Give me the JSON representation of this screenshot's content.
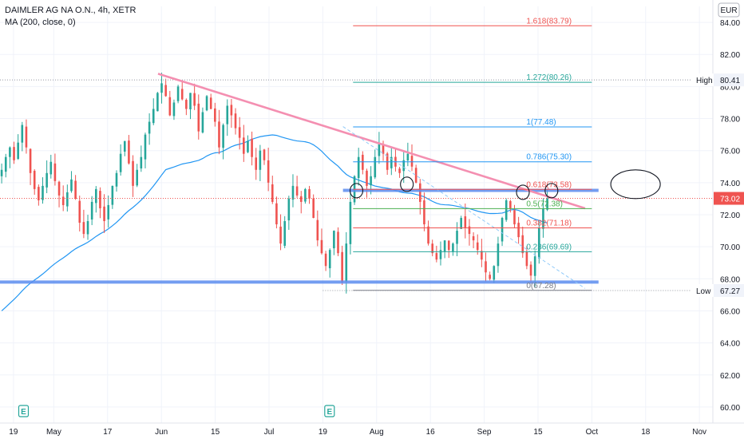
{
  "header": {
    "title": "DAIMLER AG NA O.N., 4h, XETR",
    "indicator": "MA (200, close, 0)",
    "currency": "EUR"
  },
  "colors": {
    "up": "#26a69a",
    "down": "#ef5350",
    "ma": "#2196f3",
    "trendline": "#f48fb1",
    "support": "#5b8def",
    "price_badge": "#ef5350"
  },
  "chart_data": {
    "type": "candlestick",
    "ylim": [
      59,
      85
    ],
    "y_ticks": [
      "60.00",
      "62.00",
      "64.00",
      "66.00",
      "68.00",
      "70.00",
      "72.00",
      "74.00",
      "76.00",
      "78.00",
      "80.00",
      "82.00",
      "84.00"
    ],
    "x_ticks": [
      {
        "label": "19",
        "pos": 0.0
      },
      {
        "label": "May",
        "pos": 12.0
      },
      {
        "label": "17",
        "pos": 28.0
      },
      {
        "label": "Jun",
        "pos": 44.0
      },
      {
        "label": "15",
        "pos": 60.0
      },
      {
        "label": "Jul",
        "pos": 76.0
      },
      {
        "label": "19",
        "pos": 92.0
      },
      {
        "label": "Aug",
        "pos": 108.0
      },
      {
        "label": "16",
        "pos": 124.0
      },
      {
        "label": "Sep",
        "pos": 140.0
      },
      {
        "label": "15",
        "pos": 156.0
      },
      {
        "label": "Oct",
        "pos": 172.0
      },
      {
        "label": "18",
        "pos": 188.0
      },
      {
        "label": "Nov",
        "pos": 204.0
      }
    ],
    "x_range": [
      -4,
      208
    ],
    "earnings_markers": [
      {
        "label": "E",
        "pos": 3.0
      },
      {
        "label": "E",
        "pos": 94.0
      }
    ],
    "closes": [
      74.8,
      75.6,
      76.2,
      75.4,
      76.5,
      77.6,
      76.2,
      74.6,
      73.6,
      72.9,
      73.8,
      74.6,
      75.3,
      74.1,
      73.2,
      72.6,
      73.4,
      74.2,
      73.0,
      71.5,
      70.8,
      71.6,
      72.8,
      73.6,
      72.4,
      71.6,
      72.6,
      73.8,
      74.6,
      75.8,
      76.6,
      75.2,
      73.8,
      74.8,
      75.6,
      77.0,
      77.8,
      78.6,
      79.6,
      80.2,
      79.4,
      78.2,
      79.0,
      80.0,
      79.2,
      78.6,
      79.6,
      78.8,
      77.2,
      78.4,
      79.4,
      78.6,
      77.8,
      76.2,
      77.6,
      78.8,
      78.2,
      77.4,
      76.8,
      75.8,
      76.6,
      75.6,
      74.8,
      76.0,
      75.4,
      74.0,
      72.8,
      71.4,
      70.2,
      71.6,
      73.0,
      73.8,
      73.2,
      72.8,
      73.6,
      73.0,
      71.8,
      70.4,
      69.6,
      68.8,
      69.8,
      71.0,
      69.6,
      67.8,
      70.2,
      72.8,
      74.4,
      75.6,
      74.8,
      73.8,
      74.4,
      75.6,
      76.4,
      75.8,
      74.8,
      75.6,
      75.0,
      74.6,
      75.4,
      75.8,
      75.0,
      74.0,
      72.8,
      71.4,
      70.2,
      69.6,
      69.2,
      69.8,
      70.4,
      69.8,
      70.2,
      71.0,
      71.8,
      71.2,
      70.8,
      70.4,
      69.8,
      69.2,
      68.4,
      68.0,
      68.8,
      70.2,
      71.8,
      72.9,
      72.4,
      71.4,
      70.6,
      69.6,
      68.8,
      68.2,
      69.4,
      71.2,
      72.4,
      73.02
    ],
    "high": 80.41,
    "low": 67.27,
    "last_price": 73.02,
    "high_label": "High",
    "low_label": "Low",
    "high_value": "80.41",
    "low_value": "67.27",
    "last_value": "73.02",
    "trendline": {
      "x1": 43.0,
      "y1": 80.8,
      "x2": 170.0,
      "y2": 72.4
    },
    "dashed_trendline": {
      "x1": 98.0,
      "y1": 77.5,
      "x2": 170.0,
      "y2": 67.4
    },
    "support_lines": [
      {
        "y": 73.52,
        "x1": 98.0,
        "x2": 174.0
      },
      {
        "y": 67.8,
        "x1": -4.0,
        "x2": 174.0
      }
    ],
    "high_dotted": {
      "y": 80.41,
      "x1": -4.0
    },
    "low_dotted": {
      "y": 67.27,
      "x1": 92.0
    },
    "fibonacci": {
      "x1": 101.0,
      "x2": 172.0,
      "levels": [
        {
          "ratio": "1.618",
          "price": 83.79,
          "text": "1.618(83.79)",
          "color": "#ef5350"
        },
        {
          "ratio": "1.272",
          "price": 80.26,
          "text": "1.272(80.26)",
          "color": "#26a69a"
        },
        {
          "ratio": "1",
          "price": 77.48,
          "text": "1(77.48)",
          "color": "#2196f3"
        },
        {
          "ratio": "0.786",
          "price": 75.3,
          "text": "0.786(75.30)",
          "color": "#2196f3"
        },
        {
          "ratio": "0.618",
          "price": 73.58,
          "text": "0.618(73.58)",
          "color": "#ef5350"
        },
        {
          "ratio": "0.5",
          "price": 72.38,
          "text": "0.5(72.38)",
          "color": "#4caf50"
        },
        {
          "ratio": "0.382",
          "price": 71.18,
          "text": "0.382(71.18)",
          "color": "#ef5350"
        },
        {
          "ratio": "0.236",
          "price": 69.69,
          "text": "0.236(69.69)",
          "color": "#26a69a"
        },
        {
          "ratio": "0",
          "price": 67.28,
          "text": "0(67.28)",
          "color": "#787b86"
        }
      ]
    },
    "annotation_circles": [
      {
        "x": 102.0,
        "y": 73.5
      },
      {
        "x": 117.0,
        "y": 73.9
      },
      {
        "x": 151.5,
        "y": 73.4
      },
      {
        "x": 160.0,
        "y": 73.5
      },
      {
        "x": 185.0,
        "y": 73.9
      }
    ]
  }
}
